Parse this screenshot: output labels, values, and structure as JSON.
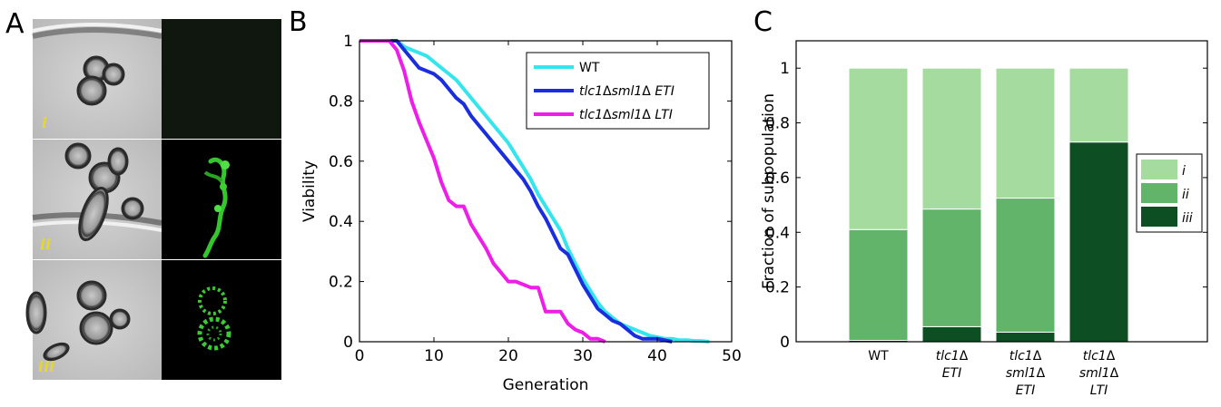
{
  "panels": {
    "a": "A",
    "b": "B",
    "c": "C"
  },
  "panel_a": {
    "labels": [
      "i",
      "ii",
      "iii"
    ]
  },
  "chart_data": [
    {
      "type": "line",
      "xlabel": "Generation",
      "ylabel": "Viability",
      "xlim": [
        0,
        50
      ],
      "ylim": [
        0,
        1
      ],
      "xticks": [
        0,
        10,
        20,
        30,
        40,
        50
      ],
      "yticks": [
        0,
        0.2,
        0.4,
        0.6,
        0.8,
        1
      ],
      "grid": false,
      "legend_position": "top-right",
      "series": [
        {
          "name": "WT",
          "color": "#33e6ee",
          "x": [
            0,
            5,
            6,
            7,
            8,
            9,
            10,
            11,
            12,
            13,
            14,
            15,
            16,
            17,
            18,
            19,
            20,
            21,
            22,
            23,
            24,
            25,
            26,
            27,
            28,
            29,
            30,
            31,
            32,
            33,
            34,
            35,
            36,
            37,
            38,
            39,
            40,
            41,
            42,
            43,
            44,
            45,
            46,
            47
          ],
          "y": [
            1,
            1,
            0.98,
            0.97,
            0.96,
            0.95,
            0.93,
            0.91,
            0.89,
            0.87,
            0.84,
            0.81,
            0.78,
            0.75,
            0.72,
            0.69,
            0.66,
            0.62,
            0.58,
            0.54,
            0.49,
            0.45,
            0.41,
            0.37,
            0.31,
            0.26,
            0.21,
            0.17,
            0.13,
            0.1,
            0.08,
            0.06,
            0.05,
            0.04,
            0.03,
            0.02,
            0.015,
            0.01,
            0.01,
            0.005,
            0.005,
            0.003,
            0.002,
            0
          ]
        },
        {
          "name": "tlc1Δsml1Δ ETI",
          "name_parts": [
            "tlc1",
            "Δ",
            "sml1",
            "Δ",
            " ",
            "ETI"
          ],
          "color": "#1a2ee0",
          "x": [
            0,
            5,
            6,
            7,
            8,
            9,
            10,
            11,
            12,
            13,
            14,
            15,
            16,
            17,
            18,
            19,
            20,
            21,
            22,
            23,
            24,
            25,
            26,
            27,
            28,
            29,
            30,
            31,
            32,
            33,
            34,
            35,
            36,
            37,
            38,
            39,
            40,
            41,
            42
          ],
          "y": [
            1,
            1,
            0.97,
            0.94,
            0.91,
            0.9,
            0.89,
            0.87,
            0.84,
            0.81,
            0.79,
            0.75,
            0.72,
            0.69,
            0.66,
            0.63,
            0.6,
            0.57,
            0.54,
            0.5,
            0.45,
            0.41,
            0.36,
            0.31,
            0.29,
            0.24,
            0.19,
            0.15,
            0.11,
            0.09,
            0.07,
            0.06,
            0.04,
            0.02,
            0.01,
            0.01,
            0.01,
            0.005,
            0
          ]
        },
        {
          "name": "tlc1Δsml1Δ LTI",
          "name_parts": [
            "tlc1",
            "Δ",
            "sml1",
            "Δ",
            " ",
            "LTI"
          ],
          "color": "#ee1ee8",
          "x": [
            0,
            4,
            5,
            6,
            7,
            8,
            9,
            10,
            11,
            12,
            13,
            14,
            15,
            16,
            17,
            18,
            19,
            20,
            21,
            22,
            23,
            24,
            25,
            26,
            27,
            28,
            29,
            30,
            31,
            32,
            33
          ],
          "y": [
            1,
            1,
            0.97,
            0.9,
            0.8,
            0.73,
            0.67,
            0.61,
            0.53,
            0.47,
            0.45,
            0.45,
            0.39,
            0.35,
            0.31,
            0.26,
            0.23,
            0.2,
            0.2,
            0.19,
            0.18,
            0.18,
            0.1,
            0.1,
            0.1,
            0.06,
            0.04,
            0.03,
            0.01,
            0.01,
            0
          ]
        }
      ]
    },
    {
      "type": "bar",
      "stacked": true,
      "ylabel": "Fraction of subpopulation",
      "ylim": [
        0,
        1.1
      ],
      "yticks": [
        0,
        0.2,
        0.4,
        0.6,
        0.8,
        1
      ],
      "grid": false,
      "legend_position": "right",
      "categories": [
        [
          "WT"
        ],
        [
          "tlc1Δ",
          "ETI"
        ],
        [
          "tlc1Δ",
          "sml1Δ",
          "ETI"
        ],
        [
          "tlc1Δ",
          "sml1Δ",
          "LTI"
        ]
      ],
      "series": [
        {
          "name": "iii",
          "color": "#0d4f22",
          "values": [
            0.005,
            0.055,
            0.035,
            0.73
          ]
        },
        {
          "name": "ii",
          "color": "#61b46a",
          "values": [
            0.405,
            0.43,
            0.49,
            0.0
          ]
        },
        {
          "name": "i",
          "color": "#a6dba0",
          "values": [
            0.59,
            0.515,
            0.475,
            0.27
          ]
        }
      ],
      "legend_order": [
        "i",
        "ii",
        "iii"
      ]
    }
  ]
}
